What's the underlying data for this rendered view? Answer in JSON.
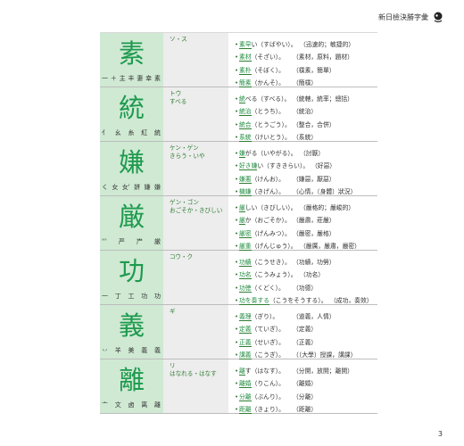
{
  "header": {
    "title": "新日檢決勝字彙"
  },
  "page_number": "3",
  "entries": [
    {
      "kanji": "素",
      "strokes": [
        "一",
        "＋",
        "主",
        "丰",
        "妻",
        "幸",
        "素"
      ],
      "readings": [
        {
          "text": "ソ・ス",
          "type": "on"
        }
      ],
      "words": [
        {
          "kw": "素早",
          "rest": "い（すばやい）。",
          "meaning": "（迅速的；敏捷的）"
        },
        {
          "kw": "素材",
          "rest": "（そざい）。",
          "meaning": "（素材，原料，題材）"
        },
        {
          "kw": "素朴",
          "rest": "（そぼく）。",
          "meaning": "（樸素，簡單）"
        },
        {
          "kw": "簡素",
          "rest": "（かんそ）。",
          "meaning": "（簡樸）"
        }
      ]
    },
    {
      "kanji": "統",
      "strokes": [
        "亻",
        "幺",
        "糸",
        "紅",
        "統"
      ],
      "readings": [
        {
          "text": "トウ",
          "type": "on"
        },
        {
          "text": "すべる",
          "type": "kun"
        }
      ],
      "words": [
        {
          "kw": "統",
          "rest": "べる（すべる）。",
          "meaning": "（統轄，統率；總括）"
        },
        {
          "kw": "統治",
          "rest": "（とうち）。",
          "meaning": "（統治）"
        },
        {
          "kw": "統合",
          "rest": "（とうごう）。",
          "meaning": "（整合，合併）"
        },
        {
          "kw": "系統",
          "rest": "（けいとう）。",
          "meaning": "（系統）"
        }
      ]
    },
    {
      "kanji": "嫌",
      "strokes": [
        "く",
        "女",
        "女'",
        "姘",
        "嫌",
        "嫌"
      ],
      "readings": [
        {
          "text": "ケン・ゲン",
          "type": "on"
        },
        {
          "text": "きらう・いや",
          "type": "kun"
        }
      ],
      "words": [
        {
          "kw": "嫌",
          "rest": "がる（いやがる）。",
          "meaning": "（討厭）"
        },
        {
          "kw": "好き嫌",
          "rest": "い（すききらい）。",
          "meaning": "（好惡）"
        },
        {
          "kw": "嫌悪",
          "rest": "（けんお）。",
          "meaning": "（嫌惡，厭惡）"
        },
        {
          "kw": "機嫌",
          "rest": "（きげん）。",
          "meaning": "（心情，〔身體〕狀況）"
        }
      ]
    },
    {
      "kanji": "厳",
      "strokes": [
        "'''",
        "严",
        "屵",
        "厳"
      ],
      "readings": [
        {
          "text": "ゲン・ゴン",
          "type": "on"
        },
        {
          "text": "おごそか・きびしい",
          "type": "kun"
        }
      ],
      "words": [
        {
          "kw": "厳",
          "rest": "しい（きびしい）。",
          "meaning": "（嚴格的；嚴峻的）"
        },
        {
          "kw": "厳",
          "rest": "か（おごそか）。",
          "meaning": "（嚴肅，莊嚴）"
        },
        {
          "kw": "厳密",
          "rest": "（げんみつ）。",
          "meaning": "（嚴密，嚴格）"
        },
        {
          "kw": "厳重",
          "rest": "（げんじゅう）。",
          "meaning": "（嚴厲，嚴肅，嚴密）"
        }
      ]
    },
    {
      "kanji": "功",
      "strokes": [
        "一",
        "丁",
        "工",
        "功",
        "功"
      ],
      "readings": [
        {
          "text": "コウ・ク",
          "type": "on"
        }
      ],
      "words": [
        {
          "kw": "功績",
          "rest": "（こうせき）。",
          "meaning": "（功績，功勞）"
        },
        {
          "kw": "功名",
          "rest": "（こうみょう）。",
          "meaning": "（功名）"
        },
        {
          "kw": "功徳",
          "rest": "（くどく）。",
          "meaning": "（功德）"
        },
        {
          "kw": "功を奏する",
          "rest": "（こうをそうする）。",
          "meaning": "（成功，奏效）"
        }
      ]
    },
    {
      "kanji": "義",
      "strokes": [
        "丷",
        "羊",
        "美",
        "義",
        "義"
      ],
      "readings": [
        {
          "text": "ギ",
          "type": "on"
        }
      ],
      "words": [
        {
          "kw": "義理",
          "rest": "（ぎり）。",
          "meaning": "（道義，人情）"
        },
        {
          "kw": "定義",
          "rest": "（ていぎ）。",
          "meaning": "（定義）"
        },
        {
          "kw": "正義",
          "rest": "（せいぎ）。",
          "meaning": "（正義）"
        },
        {
          "kw": "講義",
          "rest": "（こうぎ）。",
          "meaning": "（〔大學〕授課，講課）"
        }
      ]
    },
    {
      "kanji": "離",
      "strokes": [
        "亠",
        "文",
        "卤",
        "离",
        "離"
      ],
      "readings": [
        {
          "text": "リ",
          "type": "on"
        },
        {
          "text": "はなれる・はなす",
          "type": "kun"
        }
      ],
      "words": [
        {
          "kw": "離",
          "rest": "す（はなす）。",
          "meaning": "（分開，放開；離開）"
        },
        {
          "kw": "離婚",
          "rest": "（りこん）。",
          "meaning": "（離婚）"
        },
        {
          "kw": "分離",
          "rest": "（ぶんり）。",
          "meaning": "（分離）"
        },
        {
          "kw": "距離",
          "rest": "（きょり）。",
          "meaning": "（距離）"
        }
      ]
    }
  ]
}
